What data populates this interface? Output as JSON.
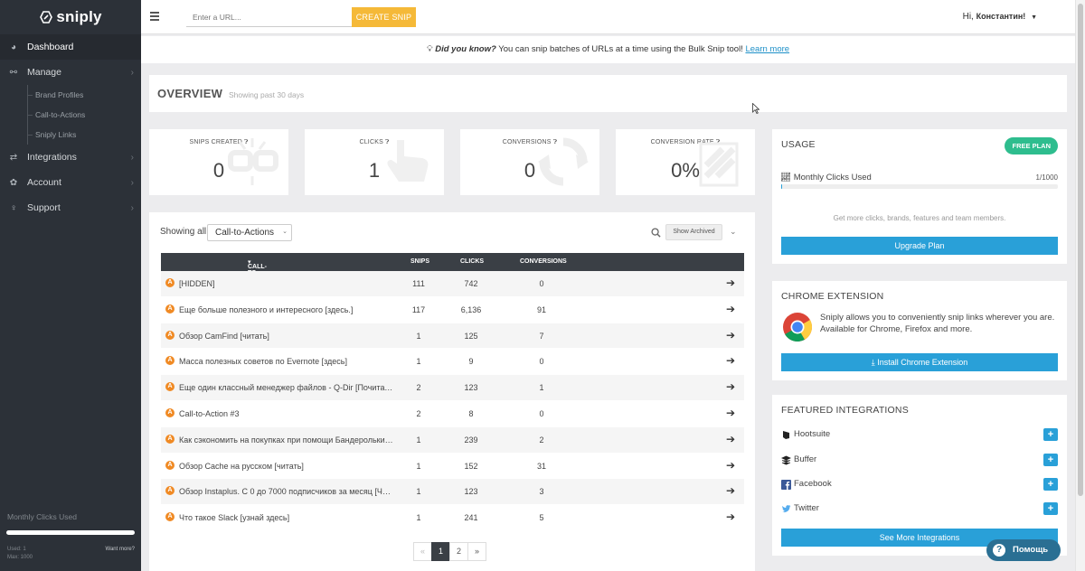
{
  "sidebar": {
    "brand": "sniply",
    "items": [
      {
        "label": "Dashboard",
        "icon": "dashboard-icon"
      },
      {
        "label": "Manage",
        "icon": "link-icon"
      },
      {
        "label": "Integrations",
        "icon": "swap-icon"
      },
      {
        "label": "Account",
        "icon": "gear-icon"
      },
      {
        "label": "Support",
        "icon": "lightbulb-icon"
      }
    ],
    "subitems": [
      "Brand Profiles",
      "Call-to-Actions",
      "Sniply Links"
    ],
    "footer": {
      "title": "Monthly Clicks Used",
      "used": "Used: 1",
      "max": "Max: 1000",
      "want_more": "Want more?"
    }
  },
  "topbar": {
    "url_placeholder": "Enter a URL...",
    "create_snip": "CREATE SNIP",
    "greeting": "Hi,",
    "user": "Константин!"
  },
  "tip": {
    "lead": "Did you know?",
    "text": " You can snip batches of URLs at a time using the Bulk Snip tool! ",
    "link": "Learn more"
  },
  "overview": {
    "title": "OVERVIEW",
    "subtitle": "Showing past 30 days"
  },
  "stats": [
    {
      "title": "SNIPS CREATED",
      "value": "0"
    },
    {
      "title": "CLICKS",
      "value": "1"
    },
    {
      "title": "CONVERSIONS",
      "value": "0"
    },
    {
      "title": "CONVERSION RATE",
      "value": "0%"
    }
  ],
  "table": {
    "showing_label": "Showing all",
    "filter": "Call-to-Actions",
    "archived_btn": "Show Archived",
    "headers": [
      "CALL-TO-ACTIONS",
      "SNIPS",
      "CLICKS",
      "CONVERSIONS"
    ],
    "rows": [
      {
        "name": "[HIDDEN]",
        "snips": "111",
        "clicks": "742",
        "conversions": "0"
      },
      {
        "name": "Еще больше полезного и интересного [здесь.]",
        "snips": "117",
        "clicks": "6,136",
        "conversions": "91"
      },
      {
        "name": "Обзор CamFind [читать]",
        "snips": "1",
        "clicks": "125",
        "conversions": "7"
      },
      {
        "name": "Масса полезных советов по Evernote [здесь]",
        "snips": "1",
        "clicks": "9",
        "conversions": "0"
      },
      {
        "name": "Еще один классный менеджер файлов - Q-Dir [Почитать]",
        "snips": "2",
        "clicks": "123",
        "conversions": "1"
      },
      {
        "name": "Call-to-Action #3",
        "snips": "2",
        "clicks": "8",
        "conversions": "0"
      },
      {
        "name": "Как сэкономить на покупках при помощи Бандерольки [...",
        "snips": "1",
        "clicks": "239",
        "conversions": "2"
      },
      {
        "name": "Обзор Cache на русском [читать]",
        "snips": "1",
        "clicks": "152",
        "conversions": "31"
      },
      {
        "name": "Обзор Instaplus. С 0 до 7000 подписчиков за месяц [Чит...",
        "snips": "1",
        "clicks": "123",
        "conversions": "3"
      },
      {
        "name": "Что такое Slack [узнай здесь]",
        "snips": "1",
        "clicks": "241",
        "conversions": "5"
      }
    ],
    "pager": [
      "«",
      "1",
      "2",
      "»"
    ]
  },
  "usage": {
    "title": "USAGE",
    "plan": "FREE PLAN",
    "metric": "Monthly Clicks Used",
    "value": "1/1000",
    "fraction_used": 0.001,
    "more": "Get more clicks, brands, features and team members.",
    "upgrade": "Upgrade Plan"
  },
  "chrome": {
    "title": "CHROME EXTENSION",
    "text": "Sniply allows you to conveniently snip links wherever you are. Available for Chrome, Firefox and more.",
    "button": "Install Chrome Extension"
  },
  "integrations": {
    "title": "FEATURED INTEGRATIONS",
    "items": [
      "Hootsuite",
      "Buffer",
      "Facebook",
      "Twitter"
    ],
    "more": "See More Integrations"
  },
  "help": {
    "label": "Помощь"
  },
  "colors": {
    "accent_blue": "#29a0d8",
    "snip_orange": "#f5b938",
    "sidebar_dark": "#2c3138",
    "plan_green": "#2ebd8e",
    "cta_badge": "#f08a24"
  }
}
